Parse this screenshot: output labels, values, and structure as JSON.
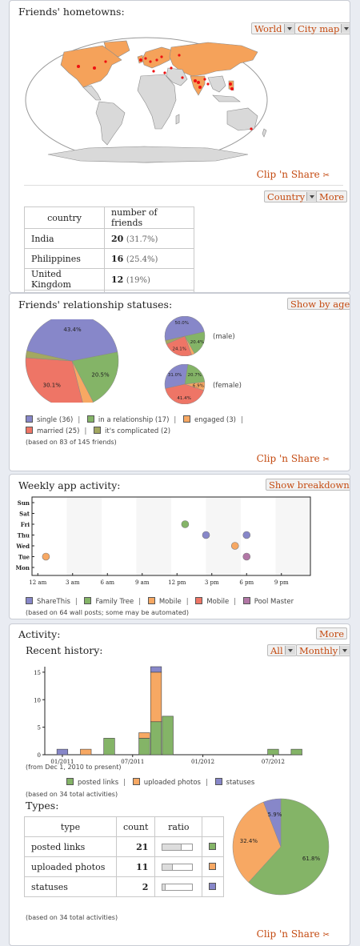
{
  "hometowns": {
    "title": "Friends' hometowns:",
    "scope_select": "World",
    "mode_select": "City map",
    "clip_label": "Clip 'n Share",
    "group_select": "Country",
    "more_label": "More",
    "table": {
      "headers": [
        "country",
        "number of friends"
      ],
      "rows": [
        {
          "country": "India",
          "count": "20",
          "pct": "(31.7%)"
        },
        {
          "country": "Philippines",
          "count": "16",
          "pct": "(25.4%)"
        },
        {
          "country": "United Kingdom",
          "count": "12",
          "pct": "(19%)"
        }
      ]
    },
    "colors": {
      "highlight": "#f5a25a",
      "land": "#d9d9d9",
      "ocean": "#ffffff",
      "city": "#ee1111"
    }
  },
  "relationship": {
    "title": "Friends' relationship statuses:",
    "toggle_label": "Show by age",
    "male_label": "(male)",
    "female_label": "(female)",
    "legend": [
      {
        "label": "single (36)",
        "color": "#8787c9"
      },
      {
        "label": "in a relationship (17)",
        "color": "#84b467"
      },
      {
        "label": "engaged (3)",
        "color": "#f7a863"
      },
      {
        "label": "married (25)",
        "color": "#ee7566"
      },
      {
        "label": "it's complicated (2)",
        "color": "#a3a860"
      }
    ],
    "note": "(based on 83 of 145 friends)",
    "clip_label": "Clip 'n Share"
  },
  "weekly": {
    "title": "Weekly app activity:",
    "toggle_label": "Show breakdown",
    "legend": [
      {
        "label": "ShareThis",
        "color": "#8787c9"
      },
      {
        "label": "Family Tree",
        "color": "#84b467"
      },
      {
        "label": "Mobile",
        "color": "#f7a863"
      },
      {
        "label": "Mobile",
        "color": "#ee7566"
      },
      {
        "label": "Pool Master",
        "color": "#b277a6"
      }
    ],
    "note": "(based on 64 wall posts; some may be automated)"
  },
  "activity": {
    "title": "Activity:",
    "more_label": "More",
    "recent_title": "Recent history:",
    "filter_select": "All",
    "period_select": "Monthly",
    "range_note": "(from Dec 1, 2010 to present)",
    "legend": [
      {
        "label": "posted links",
        "color": "#84b467"
      },
      {
        "label": "uploaded photos",
        "color": "#f7a863"
      },
      {
        "label": "statuses",
        "color": "#8787c9"
      }
    ],
    "history_note": "(based on 34 total activities)",
    "types_title": "Types:",
    "types_table": {
      "headers": [
        "type",
        "count",
        "ratio"
      ],
      "rows": [
        {
          "type": "posted links",
          "count": "21",
          "ratio": 0.618,
          "color": "#84b467"
        },
        {
          "type": "uploaded photos",
          "count": "11",
          "ratio": 0.324,
          "color": "#f7a863"
        },
        {
          "type": "statuses",
          "count": "2",
          "ratio": 0.059,
          "color": "#8787c9"
        }
      ]
    },
    "types_note": "(based on 34 total activities)",
    "clip_label": "Clip 'n Share"
  },
  "chart_data": [
    {
      "type": "pie",
      "categories": [
        "single",
        "in a relationship",
        "engaged",
        "married",
        "it's complicated"
      ],
      "values": [
        43.4,
        20.5,
        3.6,
        30.1,
        2.4
      ],
      "data_labels": [
        "43.4%",
        "20.5%",
        "",
        "30.1%",
        ""
      ],
      "colors": [
        "#8787c9",
        "#84b467",
        "#f7a863",
        "#ee7566",
        "#a3a860"
      ]
    },
    {
      "type": "pie",
      "categories": [
        "single",
        "in a relationship",
        "engaged",
        "married",
        "it's complicated"
      ],
      "values": [
        50.0,
        20.4,
        2.5,
        24.1,
        3.0
      ],
      "data_labels": [
        "50.0%",
        "20.4%",
        "",
        "24.1%",
        ""
      ],
      "colors": [
        "#8787c9",
        "#84b467",
        "#f7a863",
        "#ee7566",
        "#a3a860"
      ]
    },
    {
      "type": "pie",
      "categories": [
        "single",
        "in a relationship",
        "engaged",
        "married",
        "it's complicated"
      ],
      "values": [
        31.0,
        20.7,
        6.9,
        41.4,
        0.0
      ],
      "data_labels": [
        "31.0%",
        "20.7%",
        "6.9%",
        "41.4%",
        ""
      ],
      "colors": [
        "#8787c9",
        "#84b467",
        "#f7a863",
        "#ee7566",
        "#a3a860"
      ]
    },
    {
      "type": "scatter",
      "x_ticks": [
        "12 am",
        "3 am",
        "6 am",
        "9 am",
        "12 pm",
        "3 pm",
        "6 pm",
        "9 pm"
      ],
      "y_ticks": [
        "Sun",
        "Sat",
        "Fri",
        "Thu",
        "Wed",
        "Tue",
        "Mon"
      ],
      "xlim": [
        0,
        24
      ],
      "grid": true,
      "series": [
        {
          "name": "ShareThis",
          "color": "#8787c9",
          "points": [
            [
              15,
              "Thu"
            ],
            [
              18.5,
              "Thu"
            ]
          ]
        },
        {
          "name": "Family Tree",
          "color": "#84b467",
          "points": [
            [
              13.2,
              "Fri"
            ]
          ]
        },
        {
          "name": "Mobile",
          "color": "#f7a863",
          "points": [
            [
              1.2,
              "Tue"
            ],
            [
              17.5,
              "Wed"
            ]
          ]
        },
        {
          "name": "Mobile",
          "color": "#ee7566",
          "points": []
        },
        {
          "name": "Pool Master",
          "color": "#b277a6",
          "points": [
            [
              18.5,
              "Tue"
            ]
          ]
        }
      ]
    },
    {
      "type": "bar",
      "stacked": true,
      "categories": [
        "2010-12",
        "2011-01",
        "2011-02",
        "2011-03",
        "2011-04",
        "2011-05",
        "2011-06",
        "2011-07",
        "2011-08",
        "2011-09",
        "2011-10",
        "2011-11",
        "2011-12",
        "2012-01",
        "2012-02",
        "2012-03",
        "2012-04",
        "2012-05",
        "2012-06",
        "2012-07",
        "2012-08",
        "2012-09"
      ],
      "x_tick_labels": [
        "01/2011",
        "07/2011",
        "01/2012",
        "07/2012"
      ],
      "y_ticks": [
        0,
        5,
        10,
        15
      ],
      "ylim": [
        0,
        16
      ],
      "series": [
        {
          "name": "posted links",
          "color": "#84b467",
          "values": [
            0,
            0,
            0,
            0,
            0,
            3,
            0,
            0,
            3,
            6,
            7,
            0,
            0,
            0,
            0,
            0,
            0,
            0,
            0,
            1,
            0,
            1
          ]
        },
        {
          "name": "uploaded photos",
          "color": "#f7a863",
          "values": [
            0,
            0,
            0,
            1,
            0,
            0,
            0,
            0,
            1,
            9,
            0,
            0,
            0,
            0,
            0,
            0,
            0,
            0,
            0,
            0,
            0,
            0
          ]
        },
        {
          "name": "statuses",
          "color": "#8787c9",
          "values": [
            0,
            1,
            0,
            0,
            0,
            0,
            0,
            0,
            0,
            1,
            0,
            0,
            0,
            0,
            0,
            0,
            0,
            0,
            0,
            0,
            0,
            0
          ]
        }
      ]
    },
    {
      "type": "pie",
      "categories": [
        "posted links",
        "uploaded photos",
        "statuses"
      ],
      "values": [
        61.8,
        32.4,
        5.9
      ],
      "data_labels": [
        "61.8%",
        "32.4%",
        "5.9%"
      ],
      "colors": [
        "#84b467",
        "#f7a863",
        "#8787c9"
      ]
    }
  ]
}
